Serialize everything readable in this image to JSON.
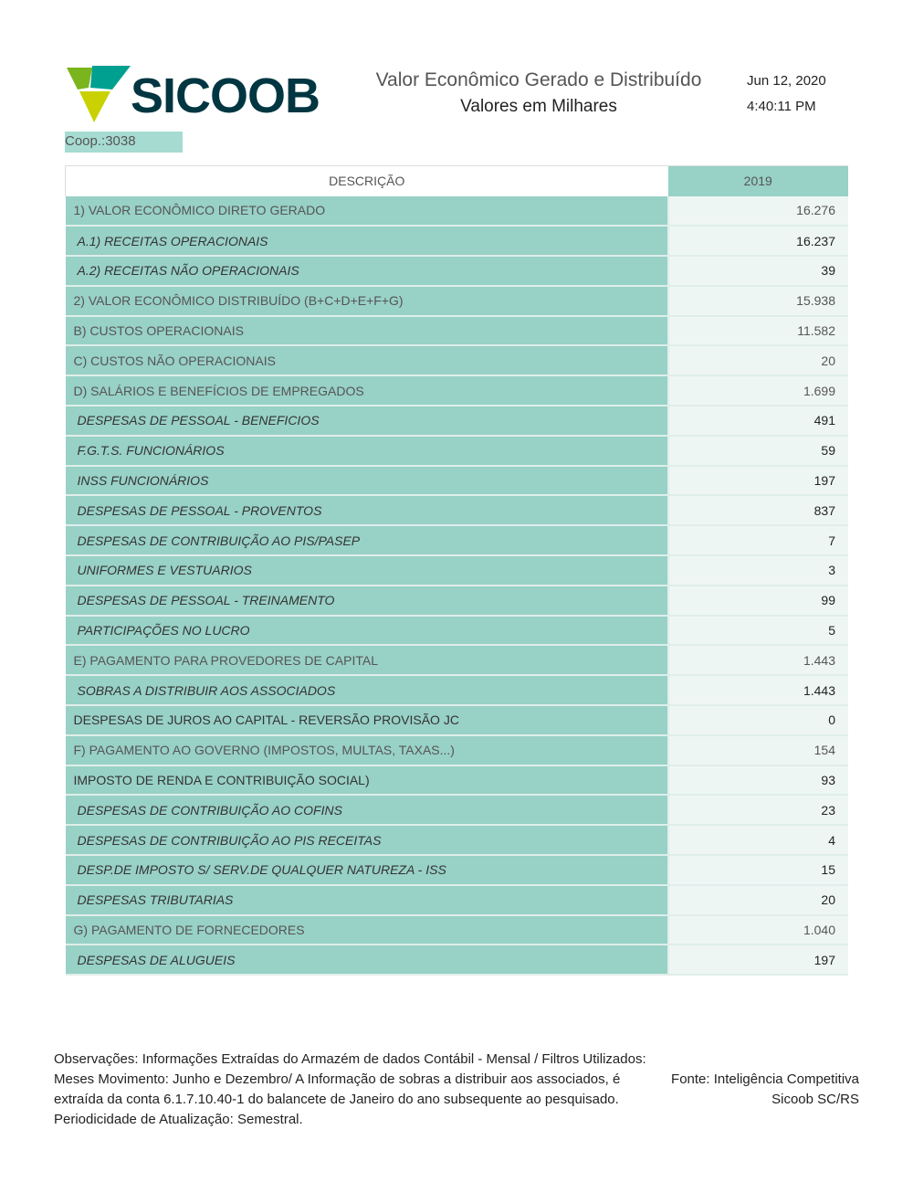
{
  "header": {
    "logo_text": "SICOOB",
    "title": "Valor Econômico Gerado e Distribuído",
    "subtitle": "Valores em Milhares",
    "date": "Jun 12, 2020",
    "time": "4:40:11 PM",
    "coop": "Coop.:3038"
  },
  "table": {
    "col_desc": "DESCRIÇÃO",
    "col_year": "2019",
    "rows": [
      {
        "label": "1) VALOR ECONÔMICO DIRETO GERADO",
        "value": "16.276",
        "style": "hd"
      },
      {
        "label": "A.1) RECEITAS OPERACIONAIS",
        "value": "16.237",
        "style": "it"
      },
      {
        "label": "A.2) RECEITAS NÃO OPERACIONAIS",
        "value": "39",
        "style": "it"
      },
      {
        "label": "2) VALOR ECONÔMICO DISTRIBUÍDO (B+C+D+E+F+G)",
        "value": "15.938",
        "style": "hd"
      },
      {
        "label": "B) CUSTOS OPERACIONAIS",
        "value": "11.582",
        "style": "hd"
      },
      {
        "label": "C) CUSTOS NÃO OPERACIONAIS",
        "value": "20",
        "style": "hd"
      },
      {
        "label": "D) SALÁRIOS E BENEFÍCIOS DE EMPREGADOS",
        "value": "1.699",
        "style": "hd"
      },
      {
        "label": "DESPESAS DE PESSOAL - BENEFICIOS",
        "value": "491",
        "style": "it"
      },
      {
        "label": "F.G.T.S. FUNCIONÁRIOS",
        "value": "59",
        "style": "it"
      },
      {
        "label": "INSS FUNCIONÁRIOS",
        "value": "197",
        "style": "it"
      },
      {
        "label": "DESPESAS DE PESSOAL - PROVENTOS",
        "value": "837",
        "style": "it"
      },
      {
        "label": "DESPESAS DE CONTRIBUIÇÃO AO PIS/PASEP",
        "value": "7",
        "style": "it"
      },
      {
        "label": "UNIFORMES E VESTUARIOS",
        "value": "3",
        "style": "it"
      },
      {
        "label": "DESPESAS DE PESSOAL - TREINAMENTO",
        "value": "99",
        "style": "it"
      },
      {
        "label": "PARTICIPAÇÕES NO LUCRO",
        "value": "5",
        "style": "it"
      },
      {
        "label": "E) PAGAMENTO PARA PROVEDORES DE CAPITAL",
        "value": "1.443",
        "style": "hd"
      },
      {
        "label": "SOBRAS A DISTRIBUIR AOS ASSOCIADOS",
        "value": "1.443",
        "style": "it"
      },
      {
        "label": "DESPESAS DE JUROS AO CAPITAL - REVERSÃO PROVISÃO JC",
        "value": "0",
        "style": "n"
      },
      {
        "label": "F) PAGAMENTO AO GOVERNO (IMPOSTOS, MULTAS, TAXAS...)",
        "value": "154",
        "style": "hd"
      },
      {
        "label": "IMPOSTO DE RENDA E CONTRIBUIÇÃO SOCIAL)",
        "value": "93",
        "style": "n"
      },
      {
        "label": "DESPESAS DE CONTRIBUIÇÃO AO COFINS",
        "value": "23",
        "style": "it"
      },
      {
        "label": "DESPESAS DE CONTRIBUIÇÃO AO PIS RECEITAS",
        "value": "4",
        "style": "it"
      },
      {
        "label": "DESP.DE IMPOSTO S/ SERV.DE QUALQUER NATUREZA - ISS",
        "value": "15",
        "style": "it"
      },
      {
        "label": "DESPESAS TRIBUTARIAS",
        "value": "20",
        "style": "it"
      },
      {
        "label": "G) PAGAMENTO DE FORNECEDORES",
        "value": "1.040",
        "style": "hd"
      },
      {
        "label": "DESPESAS DE ALUGUEIS",
        "value": "197",
        "style": "it"
      }
    ]
  },
  "footer": {
    "obs": "Observações: Informações Extraídas do Armazém de dados Contábil - Mensal / Filtros Utilizados: Meses Movimento: Junho e Dezembro/ A Informação de sobras a distribuir aos associados, é extraída da conta 6.1.7.10.40-1 do balancete de Janeiro do ano subsequente ao pesquisado. Periodicidade de Atualização: Semestral.",
    "fonte_1": "Fonte: Inteligência Competitiva",
    "fonte_2": "Sicoob SC/RS"
  }
}
